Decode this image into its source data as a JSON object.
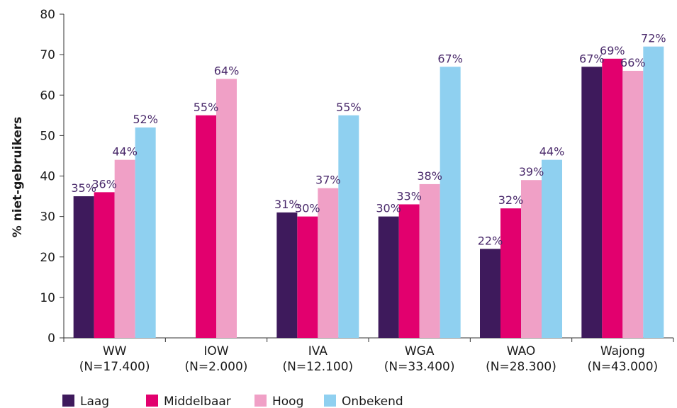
{
  "chart_data": {
    "type": "bar",
    "ylabel": "% niet-gebruikers",
    "xlabel": "",
    "ylim": [
      0,
      80
    ],
    "yticks": [
      0,
      10,
      20,
      30,
      40,
      50,
      60,
      70,
      80
    ],
    "grid": false,
    "legend_position": "bottom-left",
    "categories": [
      [
        "WW",
        "(N=17.400)"
      ],
      [
        "IOW",
        "(N=2.000)"
      ],
      [
        "IVA",
        "(N=12.100)"
      ],
      [
        "WGA",
        "(N=33.400)"
      ],
      [
        "WAO",
        "(N=28.300)"
      ],
      [
        "Wajong",
        "(N=43.000)"
      ]
    ],
    "series": [
      {
        "name": "Laag",
        "color": "#3e1a5c",
        "values": [
          35,
          null,
          31,
          30,
          22,
          67
        ],
        "labels": [
          "35%",
          "",
          "31%",
          "30%",
          "22%",
          "67%"
        ]
      },
      {
        "name": "Middelbaar",
        "color": "#e2006e",
        "values": [
          36,
          55,
          30,
          33,
          32,
          69
        ],
        "labels": [
          "36%",
          "55%",
          "30%",
          "33%",
          "32%",
          "69%"
        ]
      },
      {
        "name": "Hoog",
        "color": "#f0a0c6",
        "values": [
          44,
          64,
          37,
          38,
          39,
          66
        ],
        "labels": [
          "44%",
          "64%",
          "37%",
          "38%",
          "39%",
          "66%"
        ]
      },
      {
        "name": "Onbekend",
        "color": "#8fd0f0",
        "values": [
          52,
          null,
          55,
          67,
          44,
          72
        ],
        "labels": [
          "52%",
          "",
          "55%",
          "67%",
          "44%",
          "72%"
        ]
      }
    ]
  }
}
